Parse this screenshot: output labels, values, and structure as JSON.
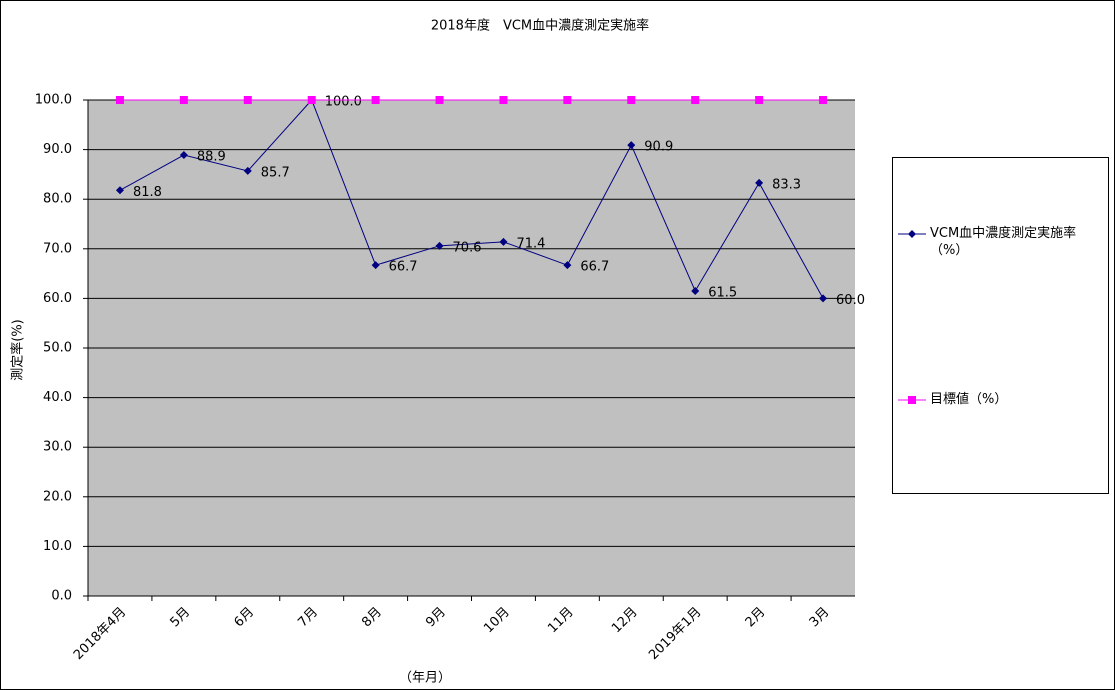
{
  "chart_data": {
    "type": "line",
    "title": "2018年度　VCM血中濃度測定実施率",
    "y_label": "測定率(%)",
    "x_label": "（年月）",
    "categories": [
      "2018年4月",
      "5月",
      "6月",
      "7月",
      "8月",
      "9月",
      "10月",
      "11月",
      "12月",
      "2019年1月",
      "2月",
      "3月"
    ],
    "series": [
      {
        "name": "VCM血中濃度測定実施率（%）",
        "color": "#000080",
        "marker": "diamond",
        "values": [
          81.8,
          88.9,
          85.7,
          100,
          66.7,
          70.6,
          71.4,
          66.7,
          90.9,
          61.5,
          83.3,
          60
        ],
        "value_labels": [
          "81.8",
          "88.9",
          "85.7",
          "100.0",
          "66.7",
          "70.6",
          "71.4",
          "66.7",
          "90.9",
          "61.5",
          "83.3",
          "60.0"
        ]
      },
      {
        "name": "目標値（%）",
        "color": "#ff00ff",
        "marker": "square",
        "values": [
          100,
          100,
          100,
          100,
          100,
          100,
          100,
          100,
          100,
          100,
          100,
          100
        ]
      }
    ],
    "ylim": [
      0,
      100
    ],
    "yticks": [
      {
        "value": 0,
        "label": "0.0"
      },
      {
        "value": 10,
        "label": "10.0"
      },
      {
        "value": 20,
        "label": "20.0"
      },
      {
        "value": 30,
        "label": "30.0"
      },
      {
        "value": 40,
        "label": "40.0"
      },
      {
        "value": 50,
        "label": "50.0"
      },
      {
        "value": 60,
        "label": "60.0"
      },
      {
        "value": 70,
        "label": "70.0"
      },
      {
        "value": 80,
        "label": "80.0"
      },
      {
        "value": 90,
        "label": "90.0"
      },
      {
        "value": 100,
        "label": "100.0"
      }
    ],
    "grid": true,
    "plot_background": "#c0c0c0",
    "legend": "right"
  }
}
